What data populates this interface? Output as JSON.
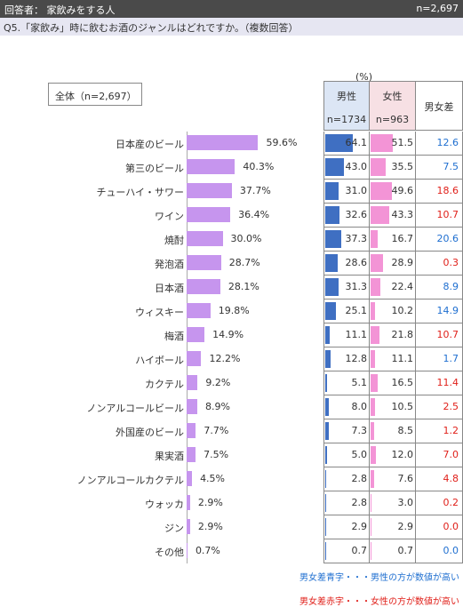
{
  "header": {
    "respondent_label": "回答者： 家飲みをする人",
    "n_total": "n=2,697"
  },
  "question": "Q5.「家飲み」時に飲むお酒のジャンルはどれですか。（複数回答）",
  "overall_label": "全体（n=2,697）",
  "unit_label": "(%)",
  "table_headers": {
    "male": "男性",
    "male_n": "n=1734",
    "female": "女性",
    "female_n": "n=963",
    "diff": "男女差"
  },
  "legend": {
    "blue_note": "男女差青字・・・男性の方が数値が高い",
    "red_note": "男女差赤字・・・女性の方が数値が高い"
  },
  "colors": {
    "all_bar": "#c695ee",
    "male_bar": "#3f6fc2",
    "female_bar": "#f394d6",
    "male_higher": "#1f6fd0",
    "female_higher": "#e0201a"
  },
  "chart_data": {
    "type": "bar",
    "title": "Q5.「家飲み」時に飲むお酒のジャンルはどれですか。（複数回答）",
    "categories": [
      "日本産のビール",
      "第三のビール",
      "チューハイ・サワー",
      "ワイン",
      "焼酎",
      "発泡酒",
      "日本酒",
      "ウィスキー",
      "梅酒",
      "ハイボール",
      "カクテル",
      "ノンアルコールビール",
      "外国産のビール",
      "果実酒",
      "ノンアルコールカクテル",
      "ウォッカ",
      "ジン",
      "その他"
    ],
    "series": [
      {
        "name": "全体（n=2,697）",
        "values": [
          59.6,
          40.3,
          37.7,
          36.4,
          30.0,
          28.7,
          28.1,
          19.8,
          14.9,
          12.2,
          9.2,
          8.9,
          7.7,
          7.5,
          4.5,
          2.9,
          2.9,
          0.7
        ]
      },
      {
        "name": "男性",
        "values": [
          64.1,
          43.0,
          31.0,
          32.6,
          37.3,
          28.6,
          31.3,
          25.1,
          11.1,
          12.8,
          5.1,
          8.0,
          7.3,
          5.0,
          2.8,
          2.8,
          2.9,
          0.7
        ]
      },
      {
        "name": "女性",
        "values": [
          51.5,
          35.5,
          49.6,
          43.3,
          16.7,
          28.9,
          22.4,
          10.2,
          21.8,
          11.1,
          16.5,
          10.5,
          8.5,
          12.0,
          7.6,
          3.0,
          2.9,
          0.7
        ]
      },
      {
        "name": "男女差",
        "values": [
          12.6,
          7.5,
          18.6,
          10.7,
          20.6,
          0.3,
          8.9,
          14.9,
          10.7,
          1.7,
          11.4,
          2.5,
          1.2,
          7.0,
          4.8,
          0.2,
          0.0,
          0.0
        ]
      }
    ],
    "diff_higher": [
      "male",
      "male",
      "female",
      "female",
      "male",
      "female",
      "male",
      "male",
      "female",
      "male",
      "female",
      "female",
      "female",
      "female",
      "female",
      "female",
      "female",
      "male"
    ],
    "display": {
      "all": [
        "59.6%",
        "40.3%",
        "37.7%",
        "36.4%",
        "30.0%",
        "28.7%",
        "28.1%",
        "19.8%",
        "14.9%",
        "12.2%",
        "9.2%",
        "8.9%",
        "7.7%",
        "7.5%",
        "4.5%",
        "2.9%",
        "2.9%",
        "0.7%"
      ],
      "male": [
        "64.1",
        "43.0",
        "31.0",
        "32.6",
        "37.3",
        "28.6",
        "31.3",
        "25.1",
        "11.1",
        "12.8",
        "5.1",
        "8.0",
        "7.3",
        "5.0",
        "2.8",
        "2.8",
        "2.9",
        "0.7"
      ],
      "female": [
        "51.5",
        "35.5",
        "49.6",
        "43.3",
        "16.7",
        "28.9",
        "22.4",
        "10.2",
        "21.8",
        "11.1",
        "16.5",
        "10.5",
        "8.5",
        "12.0",
        "7.6",
        "3.0",
        "2.9",
        "0.7"
      ],
      "diff": [
        "12.6",
        "7.5",
        "18.6",
        "10.7",
        "20.6",
        "0.3",
        "8.9",
        "14.9",
        "10.7",
        "1.7",
        "11.4",
        "2.5",
        "1.2",
        "7.0",
        "4.8",
        "0.2",
        "0.0",
        "0.0"
      ]
    },
    "xlim": [
      0,
      100
    ]
  }
}
